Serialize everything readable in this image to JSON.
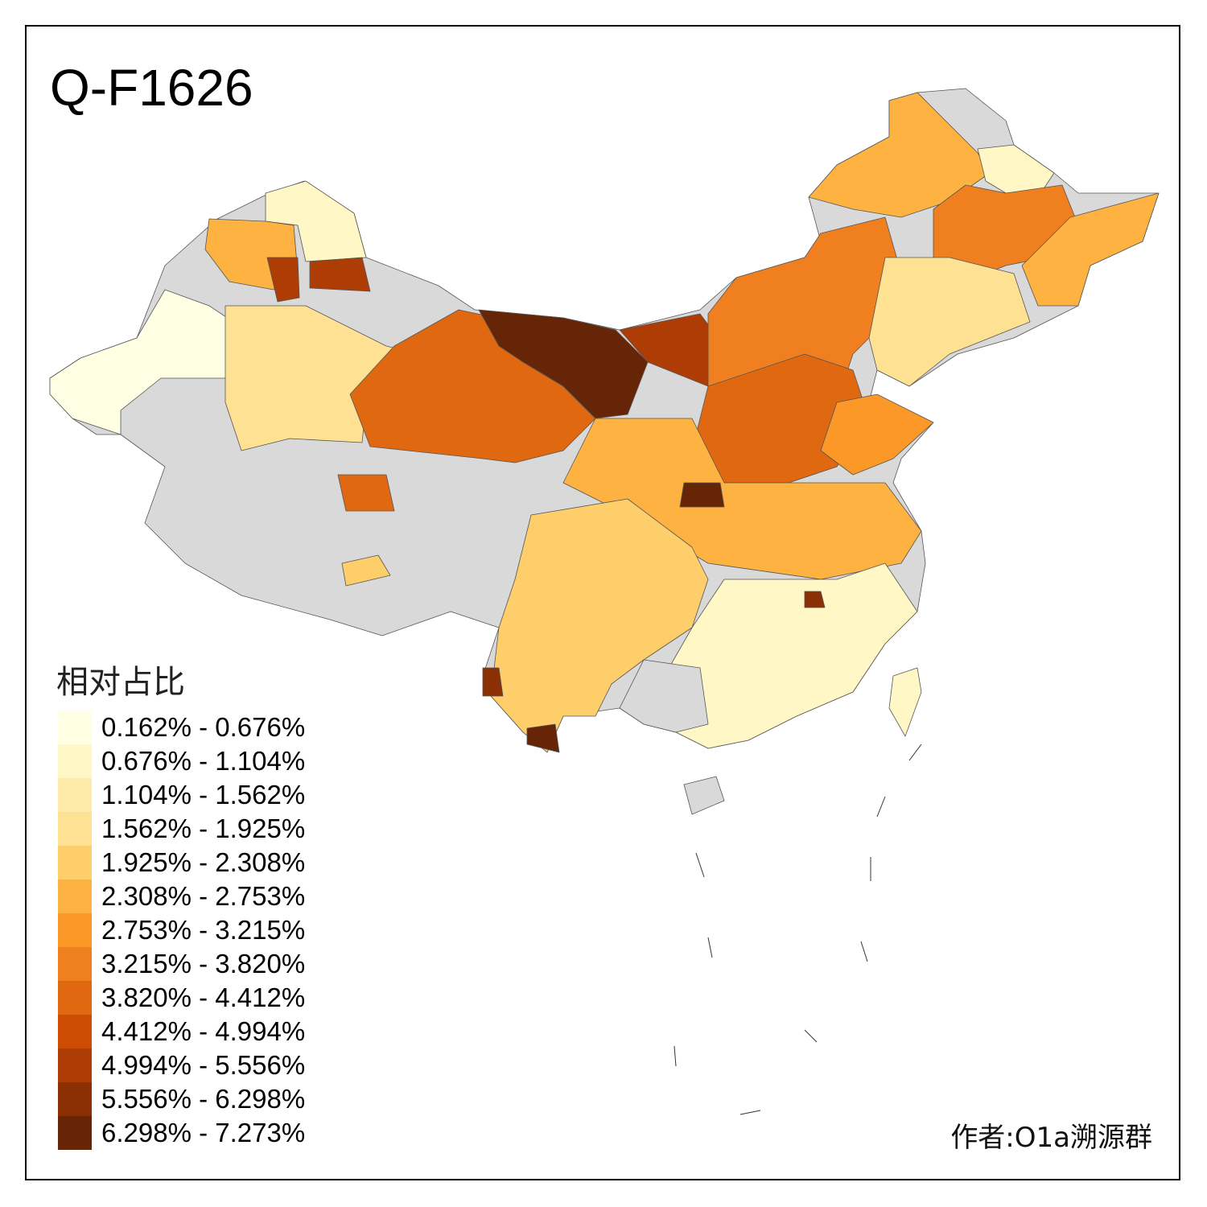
{
  "title": "Q-F1626",
  "legend": {
    "title": "相对占比",
    "classes": [
      {
        "label": "0.162% - 0.676%",
        "color": "#FFFFE3"
      },
      {
        "label": "0.676% - 1.104%",
        "color": "#FFF7C6"
      },
      {
        "label": "1.104% - 1.562%",
        "color": "#FEEBAA"
      },
      {
        "label": "1.562% - 1.925%",
        "color": "#FEE193"
      },
      {
        "label": "1.925% - 2.308%",
        "color": "#FECE6A"
      },
      {
        "label": "2.308% - 2.753%",
        "color": "#FDB242"
      },
      {
        "label": "2.753% - 3.215%",
        "color": "#FB9828"
      },
      {
        "label": "3.215% - 3.820%",
        "color": "#F07F1F"
      },
      {
        "label": "3.820% - 4.412%",
        "color": "#E06810"
      },
      {
        "label": "4.412% - 4.994%",
        "color": "#CC4D03"
      },
      {
        "label": "4.994% - 5.556%",
        "color": "#AD3D05"
      },
      {
        "label": "5.556% - 6.298%",
        "color": "#8B2F05"
      },
      {
        "label": "6.298% - 7.273%",
        "color": "#662506"
      }
    ]
  },
  "no_data_color": "#D9D9D9",
  "credit": "作者:O1a溯源群"
}
